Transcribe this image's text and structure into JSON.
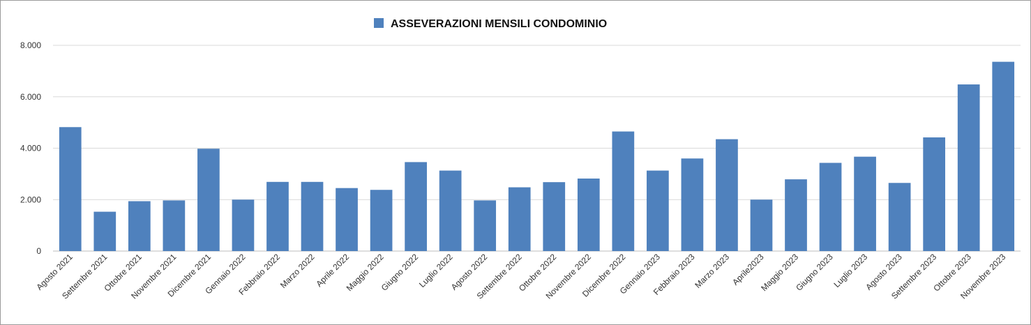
{
  "chart_data": {
    "type": "bar",
    "title": "",
    "xlabel": "",
    "ylabel": "",
    "ylim": [
      0,
      8000
    ],
    "yticks": [
      0,
      2000,
      4000,
      6000,
      8000
    ],
    "ytick_labels": [
      "0",
      "2.000",
      "4.000",
      "6.000",
      "8.000"
    ],
    "grid": true,
    "legend_position": "top-center",
    "bar_color": "#4f81bd",
    "categories": [
      "Agosto 2021",
      "Settembre 2021",
      "Ottobre 2021",
      "Novembre 2021",
      "Dicembre 2021",
      "Gennaio 2022",
      "Febbraio 2022",
      "Marzo 2022",
      "Aprile 2022",
      "Maggio 2022",
      "Giugno 2022",
      "Luglio 2022",
      "Agosto 2022",
      "Settembre 2022",
      "Ottobre 2022",
      "Novembre 2022",
      "Dicembre 2022",
      "Gennaio 2023",
      "Febbraio 2023",
      "Marzo 2023",
      "Aprile2023",
      "Maggio 2023",
      "Giugno 2023",
      "Luglio 2023",
      "Agosto 2023",
      "Settembre 2023",
      "Ottobre 2023",
      "Novembre 2023"
    ],
    "series": [
      {
        "name": "ASSEVERAZIONI MENSILI CONDOMINIO",
        "values": [
          4820,
          1530,
          1940,
          1970,
          3980,
          2000,
          2690,
          2690,
          2450,
          2380,
          3460,
          3130,
          1970,
          2480,
          2680,
          2820,
          4650,
          3130,
          3600,
          4350,
          2000,
          2790,
          3430,
          3670,
          2650,
          4420,
          6480,
          7360
        ]
      }
    ]
  }
}
